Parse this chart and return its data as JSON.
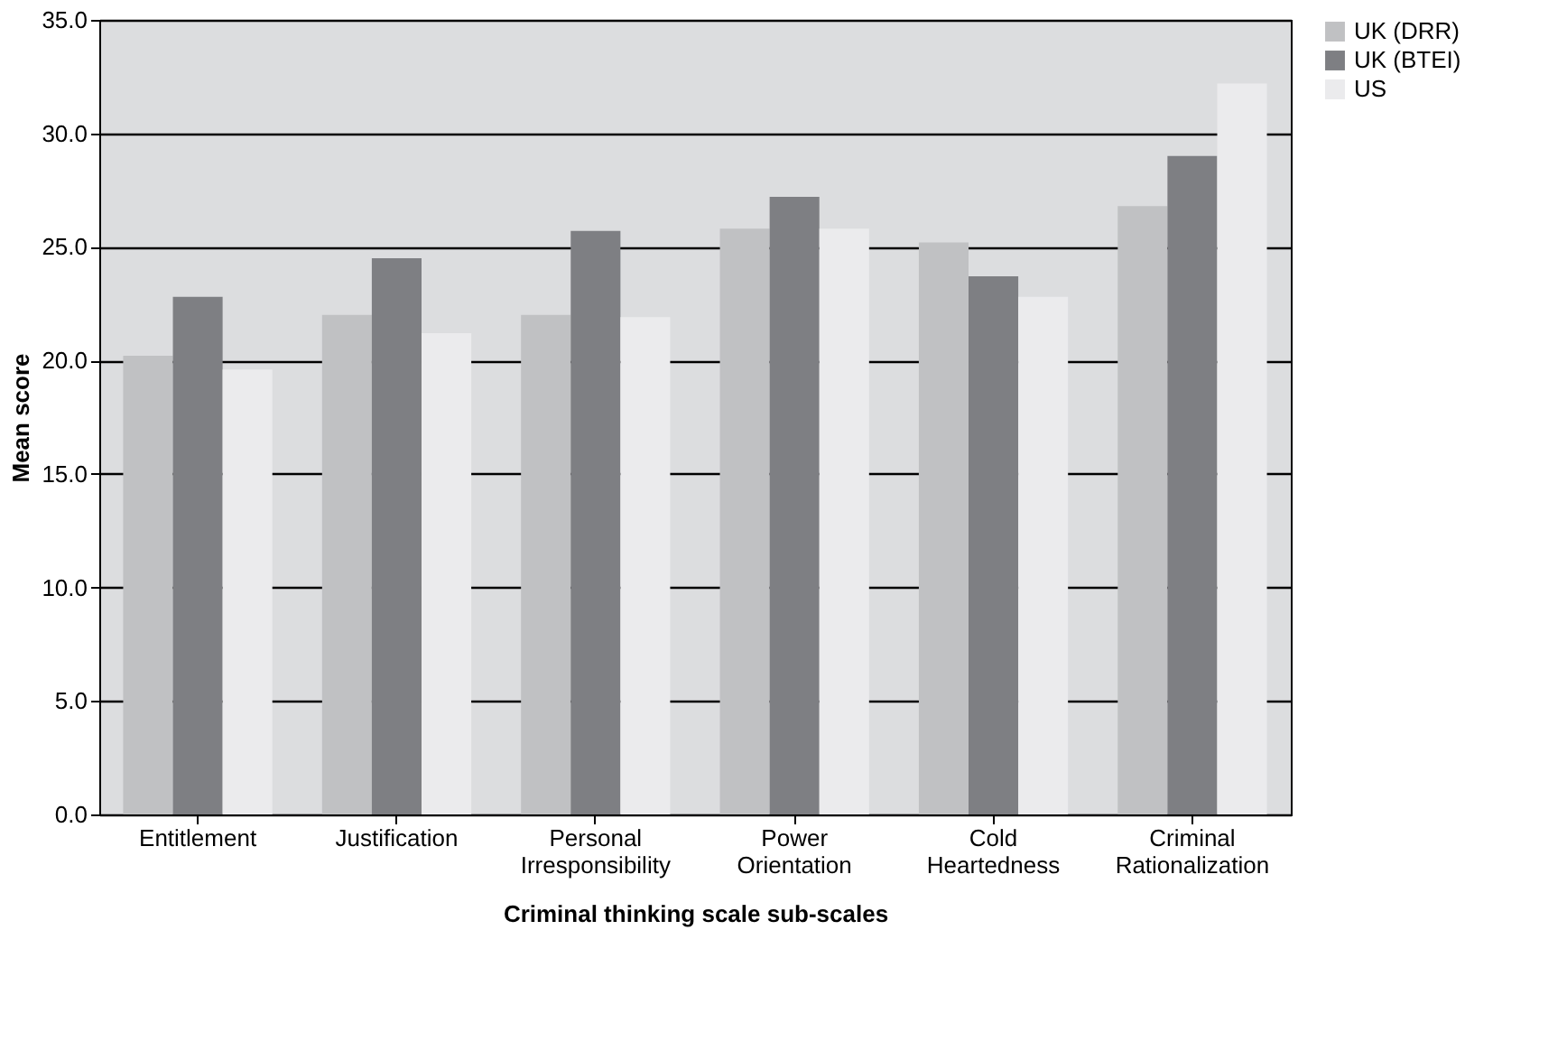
{
  "chart_data": {
    "type": "bar",
    "xlabel": "Criminal thinking scale sub-scales",
    "ylabel": "Mean score",
    "categories": [
      "Entitlement",
      "Justification",
      "Personal Irresponsibility",
      "Power Orientation",
      "Cold Heartedness",
      "Criminal Rationalization"
    ],
    "series": [
      {
        "name": "UK (DRR)",
        "color": "#c0c1c3",
        "values": [
          20.2,
          22.0,
          22.0,
          25.8,
          25.2,
          26.8
        ]
      },
      {
        "name": "UK (BTEI)",
        "color": "#7e7f83",
        "values": [
          22.8,
          24.5,
          25.7,
          27.2,
          23.7,
          29.0
        ]
      },
      {
        "name": "US",
        "color": "#ebebed",
        "values": [
          19.6,
          21.2,
          21.9,
          25.8,
          22.8,
          32.2
        ]
      }
    ],
    "ylim": [
      0,
      35
    ],
    "yticks": [
      {
        "value": 0,
        "label": "0.0"
      },
      {
        "value": 5,
        "label": "5.0"
      },
      {
        "value": 10,
        "label": "10.0"
      },
      {
        "value": 15,
        "label": "15.0"
      },
      {
        "value": 20,
        "label": "20.0"
      },
      {
        "value": 25,
        "label": "25.0"
      },
      {
        "value": 30,
        "label": "30.0"
      },
      {
        "value": 35,
        "label": "35.0"
      }
    ],
    "grid": "y",
    "legend": "right"
  }
}
